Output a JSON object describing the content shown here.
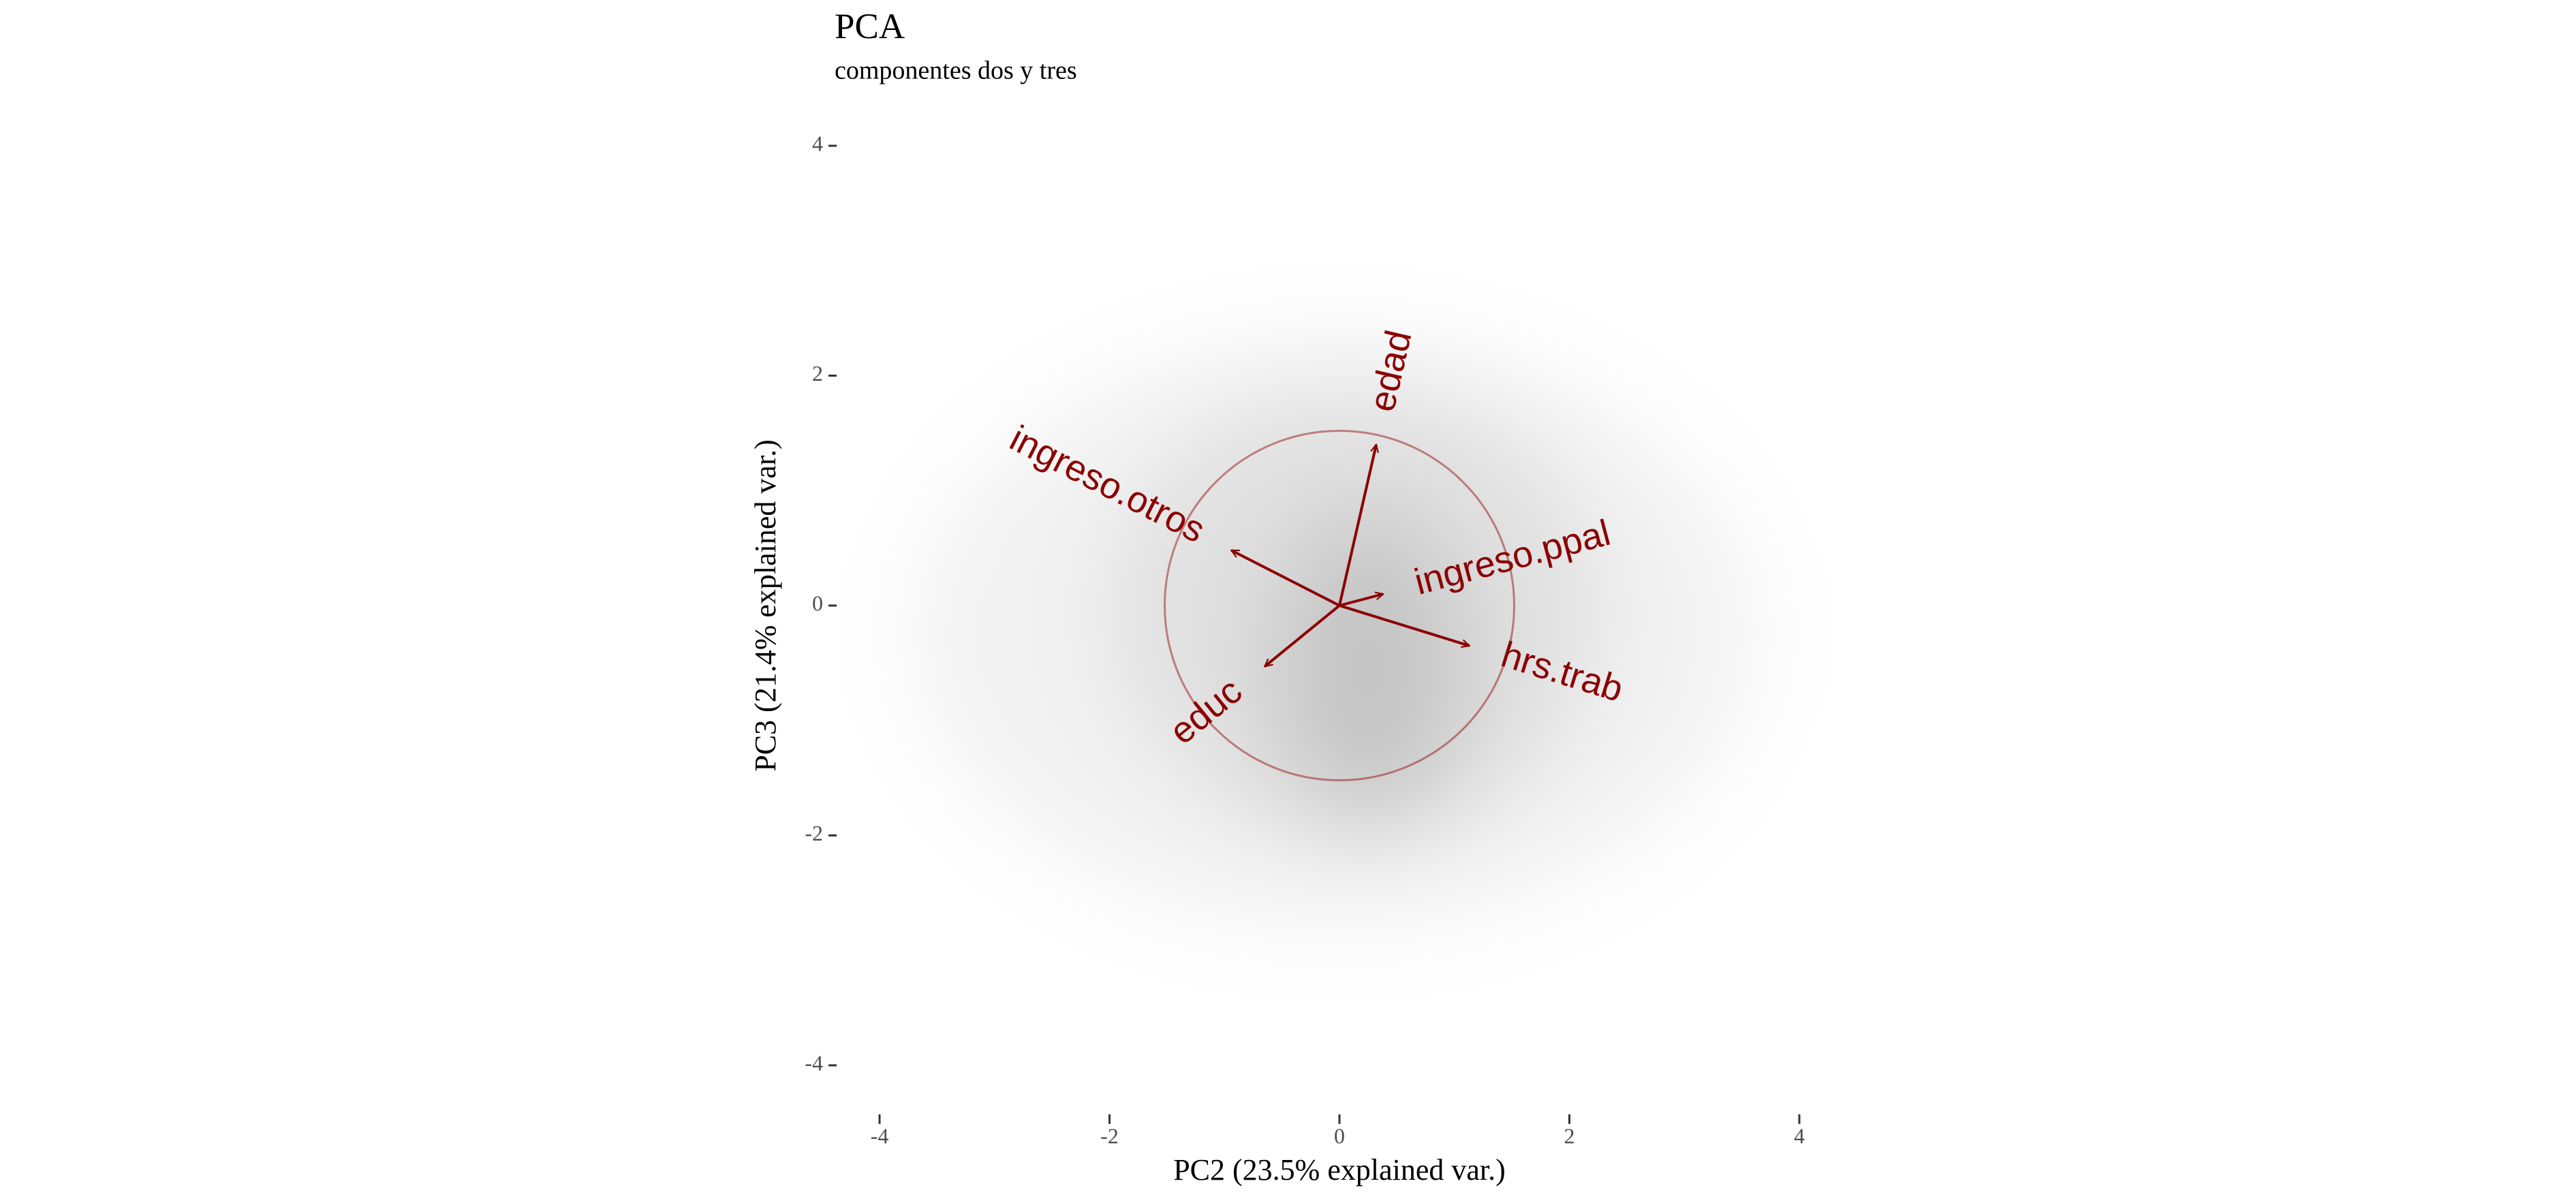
{
  "chart_data": {
    "type": "biplot",
    "title": "PCA",
    "subtitle": "componentes dos y tres",
    "x_label": "PC2 (23.5% explained var.)",
    "y_label": "PC3 (21.4% explained var.)",
    "xlim": [
      -4,
      4
    ],
    "ylim": [
      -4,
      4
    ],
    "xticks": [
      -4,
      -2,
      0,
      2,
      4
    ],
    "yticks": [
      -4,
      -2,
      0,
      2,
      4
    ],
    "grid": false,
    "color": "#8b0000",
    "circle_radius": 1.52,
    "loadings": [
      {
        "name": "edad",
        "x": 0.32,
        "y": 1.4
      },
      {
        "name": "ingreso.otros",
        "x": -0.94,
        "y": 0.48
      },
      {
        "name": "ingreso.ppal",
        "x": 0.38,
        "y": 0.1
      },
      {
        "name": "hrs.trab",
        "x": 1.13,
        "y": -0.35
      },
      {
        "name": "educ",
        "x": -0.65,
        "y": -0.53
      }
    ]
  }
}
